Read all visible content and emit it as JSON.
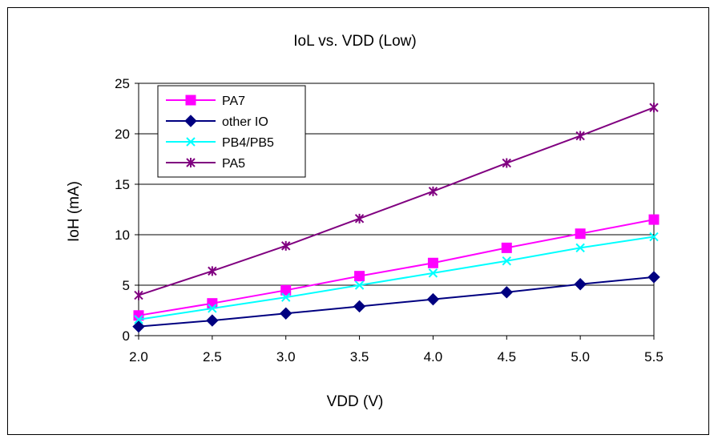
{
  "chart_data": {
    "type": "line",
    "title": "IoL vs. VDD (Low)",
    "xlabel": "VDD (V)",
    "ylabel": "IoH (mA)",
    "x": [
      2.0,
      2.5,
      3.0,
      3.5,
      4.0,
      4.5,
      5.0,
      5.5
    ],
    "x_tick_labels": [
      "2.0",
      "2.5",
      "3.0",
      "3.5",
      "4.0",
      "4.5",
      "5.0",
      "5.5"
    ],
    "xlim": [
      2.0,
      5.5
    ],
    "ylim": [
      0,
      25
    ],
    "y_ticks": [
      0,
      5,
      10,
      15,
      20,
      25
    ],
    "grid": "horizontal",
    "legend_position": "top-left",
    "series": [
      {
        "name": "PA7",
        "color": "#ff00ff",
        "marker": "square",
        "values": [
          2.0,
          3.2,
          4.5,
          5.9,
          7.2,
          8.7,
          10.1,
          11.5
        ]
      },
      {
        "name": "other IO",
        "color": "#000080",
        "marker": "diamond",
        "values": [
          0.9,
          1.5,
          2.2,
          2.9,
          3.6,
          4.3,
          5.1,
          5.8
        ]
      },
      {
        "name": "PB4/PB5",
        "color": "#00ffff",
        "marker": "x",
        "values": [
          1.6,
          2.7,
          3.8,
          5.0,
          6.2,
          7.4,
          8.7,
          9.8
        ]
      },
      {
        "name": "PA5",
        "color": "#800080",
        "marker": "star",
        "values": [
          4.0,
          6.4,
          8.9,
          11.6,
          14.3,
          17.1,
          19.8,
          22.6
        ]
      }
    ]
  }
}
